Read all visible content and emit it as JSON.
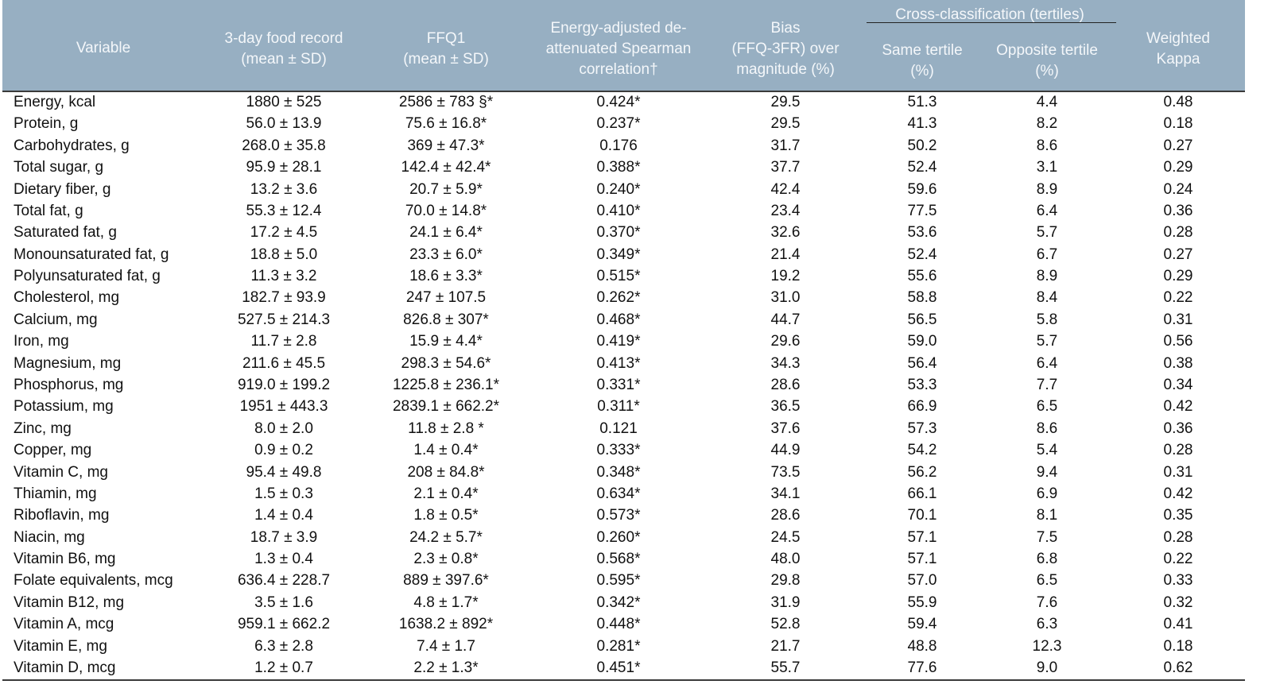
{
  "header": {
    "group": "Cross-classification (tertiles)",
    "columns": [
      [
        "Variable"
      ],
      [
        "3-day food record",
        "(mean ± SD)"
      ],
      [
        "FFQ1",
        "(mean ± SD)"
      ],
      [
        "Energy-adjusted de-",
        "attenuated Spearman",
        "correlation†"
      ],
      [
        "Bias",
        "(FFQ-3FR) over",
        "magnitude (%)"
      ],
      [
        "Same tertile",
        "(%)"
      ],
      [
        "Opposite tertile",
        "(%)"
      ],
      [
        "Weighted",
        "Kappa"
      ]
    ]
  },
  "table": {
    "rows": [
      [
        "Energy, kcal",
        "1880 ± 525",
        "2586 ± 783 §*",
        "0.424*",
        "29.5",
        "51.3",
        "4.4",
        "0.48"
      ],
      [
        "Protein, g",
        "56.0 ± 13.9",
        "75.6 ± 16.8*",
        "0.237*",
        "29.5",
        "41.3",
        "8.2",
        "0.18"
      ],
      [
        "Carbohydrates, g",
        "268.0 ± 35.8",
        "369 ± 47.3*",
        "0.176",
        "31.7",
        "50.2",
        "8.6",
        "0.27"
      ],
      [
        "Total sugar, g",
        "95.9 ± 28.1",
        "142.4 ± 42.4*",
        "0.388*",
        "37.7",
        "52.4",
        "3.1",
        "0.29"
      ],
      [
        "Dietary fiber, g",
        "13.2 ± 3.6",
        "20.7 ± 5.9*",
        "0.240*",
        "42.4",
        "59.6",
        "8.9",
        "0.24"
      ],
      [
        "Total fat, g",
        "55.3 ± 12.4",
        "70.0 ± 14.8*",
        "0.410*",
        "23.4",
        "77.5",
        "6.4",
        "0.36"
      ],
      [
        "Saturated fat, g",
        "17.2 ± 4.5",
        "24.1 ± 6.4*",
        "0.370*",
        "32.6",
        "53.6",
        "5.7",
        "0.28"
      ],
      [
        "Monounsaturated fat, g",
        "18.8 ± 5.0",
        "23.3 ± 6.0*",
        "0.349*",
        "21.4",
        "52.4",
        "6.7",
        "0.27"
      ],
      [
        "Polyunsaturated fat, g",
        "11.3 ± 3.2",
        "18.6 ± 3.3*",
        "0.515*",
        "19.2",
        "55.6",
        "8.9",
        "0.29"
      ],
      [
        "Cholesterol, mg",
        "182.7 ± 93.9",
        "247 ± 107.5",
        "0.262*",
        "31.0",
        "58.8",
        "8.4",
        "0.22"
      ],
      [
        "Calcium, mg",
        "527.5 ± 214.3",
        "826.8 ± 307*",
        "0.468*",
        "44.7",
        "56.5",
        "5.8",
        "0.31"
      ],
      [
        "Iron, mg",
        "11.7 ± 2.8",
        "15.9 ± 4.4*",
        "0.419*",
        "29.6",
        "59.0",
        "5.7",
        "0.56"
      ],
      [
        "Magnesium, mg",
        "211.6 ± 45.5",
        "298.3 ± 54.6*",
        "0.413*",
        "34.3",
        "56.4",
        "6.4",
        "0.38"
      ],
      [
        "Phosphorus, mg",
        "919.0 ± 199.2",
        "1225.8 ± 236.1*",
        "0.331*",
        "28.6",
        "53.3",
        "7.7",
        "0.34"
      ],
      [
        "Potassium, mg",
        "1951 ± 443.3",
        "2839.1 ± 662.2*",
        "0.311*",
        "36.5",
        "66.9",
        "6.5",
        "0.42"
      ],
      [
        "Zinc, mg",
        "8.0 ± 2.0",
        "11.8 ± 2.8 *",
        "0.121",
        "37.6",
        "57.3",
        "8.6",
        "0.36"
      ],
      [
        "Copper, mg",
        "0.9 ± 0.2",
        "1.4 ± 0.4*",
        "0.333*",
        "44.9",
        "54.2",
        "5.4",
        "0.28"
      ],
      [
        "Vitamin C, mg",
        "95.4 ± 49.8",
        "208 ± 84.8*",
        "0.348*",
        "73.5",
        "56.2",
        "9.4",
        "0.31"
      ],
      [
        "Thiamin, mg",
        "1.5 ± 0.3",
        "2.1 ± 0.4*",
        "0.634*",
        "34.1",
        "66.1",
        "6.9",
        "0.42"
      ],
      [
        "Riboflavin, mg",
        "1.4 ± 0.4",
        "1.8 ± 0.5*",
        "0.573*",
        "28.6",
        "70.1",
        "8.1",
        "0.35"
      ],
      [
        "Niacin, mg",
        "18.7 ± 3.9",
        "24.2 ± 5.7*",
        "0.260*",
        "24.5",
        "57.1",
        "7.5",
        "0.28"
      ],
      [
        "Vitamin B6, mg",
        "1.3 ± 0.4",
        "2.3 ± 0.8*",
        "0.568*",
        "48.0",
        "57.1",
        "6.8",
        "0.22"
      ],
      [
        "Folate equivalents, mcg",
        "636.4 ± 228.7",
        "889 ± 397.6*",
        "0.595*",
        "29.8",
        "57.0",
        "6.5",
        "0.33"
      ],
      [
        "Vitamin B12, mg",
        "3.5 ± 1.6",
        "4.8 ± 1.7*",
        "0.342*",
        "31.9",
        "55.9",
        "7.6",
        "0.32"
      ],
      [
        "Vitamin A, mcg",
        "959.1 ± 662.2",
        "1638.2 ± 892*",
        "0.448*",
        "52.8",
        "59.4",
        "6.3",
        "0.41"
      ],
      [
        "Vitamin E, mg",
        "6.3 ± 2.8",
        "7.4 ± 1.7",
        "0.281*",
        "21.7",
        "48.8",
        "12.3",
        "0.18"
      ],
      [
        "Vitamin D, mcg",
        "1.2 ± 0.7",
        "2.2 ± 1.3*",
        "0.451*",
        "55.7",
        "77.6",
        "9.0",
        "0.62"
      ]
    ]
  }
}
